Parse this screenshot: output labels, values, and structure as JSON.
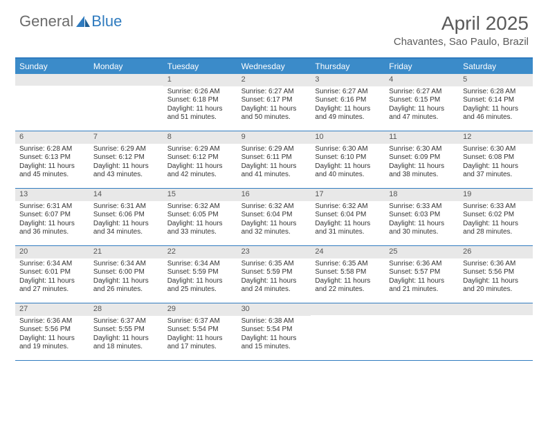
{
  "brand": {
    "part1": "General",
    "part2": "Blue"
  },
  "title": "April 2025",
  "location": "Chavantes, Sao Paulo, Brazil",
  "colors": {
    "accent": "#3b8bc9",
    "border": "#2f7bbf",
    "dayHeaderBg": "#e8e8e8",
    "text": "#333333"
  },
  "weekdays": [
    "Sunday",
    "Monday",
    "Tuesday",
    "Wednesday",
    "Thursday",
    "Friday",
    "Saturday"
  ],
  "layout": {
    "firstDayOffset": 2,
    "daysInMonth": 30
  },
  "days": [
    {
      "n": 1,
      "sunrise": "6:26 AM",
      "sunset": "6:18 PM",
      "dl": "11 hours and 51 minutes."
    },
    {
      "n": 2,
      "sunrise": "6:27 AM",
      "sunset": "6:17 PM",
      "dl": "11 hours and 50 minutes."
    },
    {
      "n": 3,
      "sunrise": "6:27 AM",
      "sunset": "6:16 PM",
      "dl": "11 hours and 49 minutes."
    },
    {
      "n": 4,
      "sunrise": "6:27 AM",
      "sunset": "6:15 PM",
      "dl": "11 hours and 47 minutes."
    },
    {
      "n": 5,
      "sunrise": "6:28 AM",
      "sunset": "6:14 PM",
      "dl": "11 hours and 46 minutes."
    },
    {
      "n": 6,
      "sunrise": "6:28 AM",
      "sunset": "6:13 PM",
      "dl": "11 hours and 45 minutes."
    },
    {
      "n": 7,
      "sunrise": "6:29 AM",
      "sunset": "6:12 PM",
      "dl": "11 hours and 43 minutes."
    },
    {
      "n": 8,
      "sunrise": "6:29 AM",
      "sunset": "6:12 PM",
      "dl": "11 hours and 42 minutes."
    },
    {
      "n": 9,
      "sunrise": "6:29 AM",
      "sunset": "6:11 PM",
      "dl": "11 hours and 41 minutes."
    },
    {
      "n": 10,
      "sunrise": "6:30 AM",
      "sunset": "6:10 PM",
      "dl": "11 hours and 40 minutes."
    },
    {
      "n": 11,
      "sunrise": "6:30 AM",
      "sunset": "6:09 PM",
      "dl": "11 hours and 38 minutes."
    },
    {
      "n": 12,
      "sunrise": "6:30 AM",
      "sunset": "6:08 PM",
      "dl": "11 hours and 37 minutes."
    },
    {
      "n": 13,
      "sunrise": "6:31 AM",
      "sunset": "6:07 PM",
      "dl": "11 hours and 36 minutes."
    },
    {
      "n": 14,
      "sunrise": "6:31 AM",
      "sunset": "6:06 PM",
      "dl": "11 hours and 34 minutes."
    },
    {
      "n": 15,
      "sunrise": "6:32 AM",
      "sunset": "6:05 PM",
      "dl": "11 hours and 33 minutes."
    },
    {
      "n": 16,
      "sunrise": "6:32 AM",
      "sunset": "6:04 PM",
      "dl": "11 hours and 32 minutes."
    },
    {
      "n": 17,
      "sunrise": "6:32 AM",
      "sunset": "6:04 PM",
      "dl": "11 hours and 31 minutes."
    },
    {
      "n": 18,
      "sunrise": "6:33 AM",
      "sunset": "6:03 PM",
      "dl": "11 hours and 30 minutes."
    },
    {
      "n": 19,
      "sunrise": "6:33 AM",
      "sunset": "6:02 PM",
      "dl": "11 hours and 28 minutes."
    },
    {
      "n": 20,
      "sunrise": "6:34 AM",
      "sunset": "6:01 PM",
      "dl": "11 hours and 27 minutes."
    },
    {
      "n": 21,
      "sunrise": "6:34 AM",
      "sunset": "6:00 PM",
      "dl": "11 hours and 26 minutes."
    },
    {
      "n": 22,
      "sunrise": "6:34 AM",
      "sunset": "5:59 PM",
      "dl": "11 hours and 25 minutes."
    },
    {
      "n": 23,
      "sunrise": "6:35 AM",
      "sunset": "5:59 PM",
      "dl": "11 hours and 24 minutes."
    },
    {
      "n": 24,
      "sunrise": "6:35 AM",
      "sunset": "5:58 PM",
      "dl": "11 hours and 22 minutes."
    },
    {
      "n": 25,
      "sunrise": "6:36 AM",
      "sunset": "5:57 PM",
      "dl": "11 hours and 21 minutes."
    },
    {
      "n": 26,
      "sunrise": "6:36 AM",
      "sunset": "5:56 PM",
      "dl": "11 hours and 20 minutes."
    },
    {
      "n": 27,
      "sunrise": "6:36 AM",
      "sunset": "5:56 PM",
      "dl": "11 hours and 19 minutes."
    },
    {
      "n": 28,
      "sunrise": "6:37 AM",
      "sunset": "5:55 PM",
      "dl": "11 hours and 18 minutes."
    },
    {
      "n": 29,
      "sunrise": "6:37 AM",
      "sunset": "5:54 PM",
      "dl": "11 hours and 17 minutes."
    },
    {
      "n": 30,
      "sunrise": "6:38 AM",
      "sunset": "5:54 PM",
      "dl": "11 hours and 15 minutes."
    }
  ],
  "labels": {
    "sunrise": "Sunrise:",
    "sunset": "Sunset:",
    "daylight": "Daylight:"
  }
}
